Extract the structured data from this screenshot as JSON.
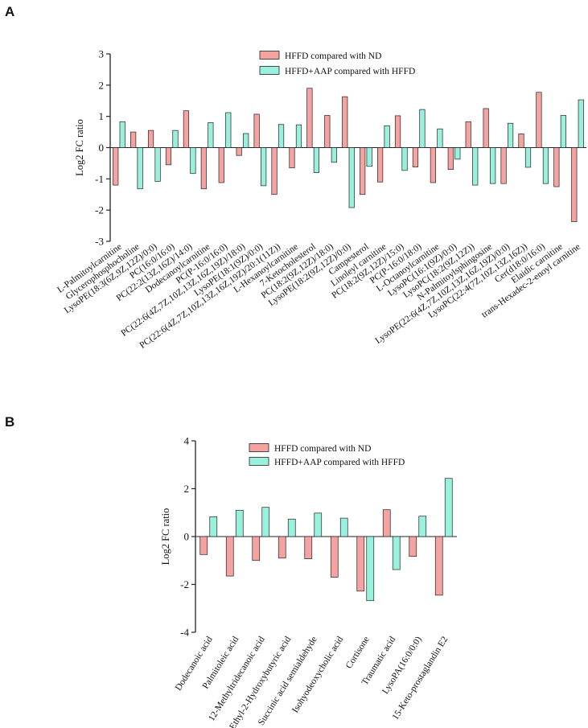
{
  "colors": {
    "series_a": "#f4a3a0",
    "series_b": "#99f0dc",
    "stroke": "#222222"
  },
  "chart_data": [
    {
      "panel": "A",
      "type": "bar",
      "ylabel": "Log2 FC ratio",
      "ylim": [
        -3,
        3
      ],
      "yticks": [
        -3,
        -2,
        -1,
        0,
        1,
        2,
        3
      ],
      "legend": "top-center",
      "categories": [
        "L-Palmitoylcarnitine",
        "Glycerophosphocholine",
        "LysoPE(18:3(6Z,9Z,12Z)/0:0)",
        "PC(16:0/16:0)",
        "PC(22:2(13Z,16Z)/14:0)",
        "Dodecanoylcarnitine",
        "PC(P-16:0/16:0)",
        "PC(22:6(4Z,7Z,10Z,13Z,16Z,19Z)/18:0)",
        "LysoPE(18:1(9Z)/0:0)",
        "PC(22:6(4Z,7Z,10Z,13Z,16Z,19Z)/20:1(11Z))",
        "L-Hexanoylcarnitine",
        "7-Ketocholesterol",
        "PC(18:2(9Z,12Z)/18:0)",
        "LysoPE(18:2(9Z,12Z)/0:0)",
        "Campesterol",
        "Linoleyl carnitine",
        "PC(18:2(9Z,12Z)/15:0)",
        "PC(P-16:0/18:0)",
        "L-Octanoylcarnitine",
        "LysoPC(16:1(9Z)/0:0)",
        "LysoPC(18:2(9Z,12Z))",
        "N-Palmitoylsphingosine",
        "LysoPE(22:6(4Z,7Z,10Z,13Z,16Z,19Z)/0:0)",
        "LysoPC(22:4(7Z,10Z,13Z,16Z))",
        "Cer(d18:0/16:0)",
        "Elaidic carnitine",
        "trans-Hexadec-2-enoyl carnitine"
      ],
      "series": [
        {
          "name": "HFFD compared with ND",
          "values": [
            -1.2,
            0.5,
            0.55,
            -0.55,
            1.18,
            -1.32,
            -1.12,
            -0.25,
            1.07,
            -1.5,
            -0.65,
            1.9,
            1.03,
            1.63,
            -1.5,
            -1.1,
            1.02,
            -0.62,
            -1.12,
            -0.7,
            0.83,
            1.25,
            -1.15,
            0.44,
            1.77,
            -1.25,
            -2.37
          ]
        },
        {
          "name": "HFFD+AAP compared with HFFD",
          "values": [
            0.83,
            -1.32,
            -1.08,
            0.55,
            -0.83,
            0.8,
            1.12,
            0.45,
            -1.22,
            0.74,
            0.73,
            -0.8,
            -0.47,
            -1.92,
            -0.6,
            0.7,
            -0.73,
            1.22,
            0.6,
            -0.37,
            -1.2,
            -1.15,
            0.78,
            -0.63,
            -1.15,
            1.03,
            1.53
          ]
        }
      ]
    },
    {
      "panel": "B",
      "type": "bar",
      "ylabel": "Log2 FC ratio",
      "ylim": [
        -4,
        4
      ],
      "yticks": [
        -4,
        -2,
        0,
        2,
        4
      ],
      "legend": "top-center",
      "categories": [
        "Dodecanoic acid",
        "Palmitoleic acid",
        "12-Methyltridecanoic acid",
        "2-Ethyl-2-Hydroxybutyric acid",
        "Succinic acid semialdehyde",
        "Isohyodeoxycholic acid",
        "Cortisone",
        "Traumatic acid",
        "LysoPA(16:0/0:0)",
        "15-Keto-prostaglandin E2"
      ],
      "series": [
        {
          "name": "HFFD compared with ND",
          "values": [
            -0.75,
            -1.65,
            -1.0,
            -0.9,
            -0.93,
            -1.7,
            -2.28,
            1.12,
            -0.83,
            -2.45
          ]
        },
        {
          "name": "HFFD+AAP compared with HFFD",
          "values": [
            0.83,
            1.1,
            1.22,
            0.73,
            0.98,
            0.77,
            -2.68,
            -1.38,
            0.85,
            2.43
          ]
        }
      ]
    }
  ]
}
